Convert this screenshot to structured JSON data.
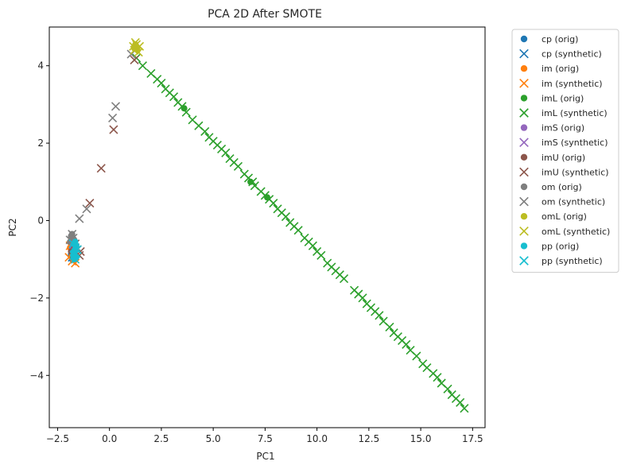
{
  "chart_data": {
    "type": "scatter",
    "title": "PCA 2D After SMOTE",
    "xlabel": "PC1",
    "ylabel": "PC2",
    "xlim": [
      -2.9,
      18.1
    ],
    "ylim": [
      -5.35,
      5.0
    ],
    "xticks": [
      -2.5,
      0.0,
      2.5,
      5.0,
      7.5,
      10.0,
      12.5,
      15.0,
      17.5
    ],
    "xtick_labels": [
      "−2.5",
      "0.0",
      "2.5",
      "5.0",
      "7.5",
      "10.0",
      "12.5",
      "15.0",
      "17.5"
    ],
    "yticks": [
      -4,
      -2,
      0,
      2,
      4
    ],
    "ytick_labels": [
      "−4",
      "−2",
      "0",
      "2",
      "4"
    ],
    "grid": false,
    "legend_position": "outside-top-right",
    "series": [
      {
        "name": "cp (orig)",
        "marker": "circle",
        "color": "#1f77b4",
        "x": [
          -1.8,
          -1.75,
          -1.7,
          -1.85,
          -1.78,
          -1.72,
          -1.8
        ],
        "y": [
          -0.7,
          -0.8,
          -0.65,
          -0.9,
          -0.55,
          -0.75,
          -1.0
        ]
      },
      {
        "name": "cp (synthetic)",
        "marker": "x",
        "color": "#1f77b4",
        "x": [
          -1.75,
          -1.7,
          -1.8,
          -1.65
        ],
        "y": [
          -0.6,
          -0.85,
          -0.95,
          -0.7
        ]
      },
      {
        "name": "im (orig)",
        "marker": "circle",
        "color": "#ff7f0e",
        "x": [
          -1.9,
          -1.8,
          -1.7,
          -1.85,
          -1.75
        ],
        "y": [
          -0.7,
          -0.9,
          -0.75,
          -0.55,
          -1.0
        ]
      },
      {
        "name": "im (synthetic)",
        "marker": "x",
        "color": "#ff7f0e",
        "x": [
          -1.95,
          -1.65,
          -1.8,
          -1.7,
          -1.9,
          -1.75
        ],
        "y": [
          -0.95,
          -1.1,
          -1.05,
          -0.85,
          -0.65,
          -0.8
        ]
      },
      {
        "name": "imL (orig)",
        "marker": "circle",
        "color": "#2ca02c",
        "x": [
          3.6,
          7.6,
          6.8
        ],
        "y": [
          2.9,
          0.6,
          1.0
        ]
      },
      {
        "name": "imL (synthetic)",
        "marker": "x",
        "color": "#2ca02c",
        "x": [
          1.3,
          1.6,
          2.0,
          2.3,
          2.5,
          2.7,
          2.9,
          3.1,
          3.3,
          3.5,
          3.7,
          4.0,
          4.3,
          4.6,
          4.8,
          5.0,
          5.2,
          5.4,
          5.6,
          5.8,
          6.0,
          6.2,
          6.5,
          6.7,
          6.9,
          7.0,
          7.3,
          7.5,
          7.7,
          7.9,
          8.1,
          8.3,
          8.5,
          8.7,
          8.9,
          9.1,
          9.4,
          9.6,
          9.8,
          10.0,
          10.2,
          10.5,
          10.7,
          10.9,
          11.1,
          11.3,
          11.8,
          12.0,
          12.2,
          12.4,
          12.6,
          12.8,
          13.0,
          13.2,
          13.5,
          13.7,
          13.9,
          14.1,
          14.3,
          14.5,
          14.8,
          15.1,
          15.3,
          15.6,
          15.8,
          16.0,
          16.3,
          16.5,
          16.7,
          16.9,
          17.1
        ],
        "y": [
          4.2,
          4.0,
          3.8,
          3.65,
          3.55,
          3.4,
          3.3,
          3.2,
          3.05,
          2.95,
          2.8,
          2.6,
          2.45,
          2.3,
          2.15,
          2.05,
          1.95,
          1.85,
          1.75,
          1.6,
          1.5,
          1.4,
          1.2,
          1.1,
          1.0,
          0.9,
          0.75,
          0.65,
          0.55,
          0.45,
          0.3,
          0.2,
          0.1,
          -0.05,
          -0.15,
          -0.25,
          -0.45,
          -0.55,
          -0.65,
          -0.8,
          -0.9,
          -1.1,
          -1.2,
          -1.3,
          -1.4,
          -1.5,
          -1.8,
          -1.9,
          -2.0,
          -2.15,
          -2.25,
          -2.35,
          -2.45,
          -2.6,
          -2.75,
          -2.9,
          -3.0,
          -3.1,
          -3.2,
          -3.35,
          -3.5,
          -3.7,
          -3.8,
          -3.95,
          -4.05,
          -4.2,
          -4.35,
          -4.5,
          -4.6,
          -4.7,
          -4.85
        ]
      },
      {
        "name": "imS (orig)",
        "marker": "circle",
        "color": "#9467bd",
        "x": [
          -1.8
        ],
        "y": [
          -0.7
        ]
      },
      {
        "name": "imS (synthetic)",
        "marker": "x",
        "color": "#9467bd",
        "x": [],
        "y": []
      },
      {
        "name": "imU (orig)",
        "marker": "circle",
        "color": "#8c564b",
        "x": [
          -1.85,
          -1.7,
          -1.75
        ],
        "y": [
          -0.8,
          -0.6,
          -0.95
        ]
      },
      {
        "name": "imU (synthetic)",
        "marker": "x",
        "color": "#8c564b",
        "x": [
          1.2,
          0.2,
          -0.4,
          -0.95,
          -1.55,
          -1.45,
          -1.65,
          -1.4
        ],
        "y": [
          4.15,
          2.35,
          1.35,
          0.45,
          -0.75,
          -0.9,
          -0.6,
          -0.8
        ]
      },
      {
        "name": "om (orig)",
        "marker": "circle",
        "color": "#7f7f7f",
        "x": [
          -1.85,
          -1.9,
          -1.8,
          -1.7
        ],
        "y": [
          -0.4,
          -0.55,
          -0.35,
          -0.5
        ]
      },
      {
        "name": "om (synthetic)",
        "marker": "x",
        "color": "#7f7f7f",
        "x": [
          1.05,
          0.3,
          0.15,
          -1.1,
          -1.45,
          -1.8,
          -1.9,
          -1.75
        ],
        "y": [
          4.3,
          2.95,
          2.65,
          0.3,
          0.05,
          -0.35,
          -0.5,
          -0.45
        ]
      },
      {
        "name": "omL (orig)",
        "marker": "circle",
        "color": "#bcbd22",
        "x": [
          1.2,
          1.3,
          1.35,
          1.25
        ],
        "y": [
          4.45,
          4.5,
          4.4,
          4.55
        ]
      },
      {
        "name": "omL (synthetic)",
        "marker": "x",
        "color": "#bcbd22",
        "x": [
          1.15,
          1.3,
          1.45,
          1.2,
          1.4,
          1.25
        ],
        "y": [
          4.5,
          4.55,
          4.5,
          4.4,
          4.35,
          4.6
        ]
      },
      {
        "name": "pp (orig)",
        "marker": "circle",
        "color": "#17becf",
        "x": [
          -1.7,
          -1.65,
          -1.75,
          -1.6,
          -1.7,
          -1.65,
          -1.72,
          -1.6
        ],
        "y": [
          -0.6,
          -0.75,
          -0.9,
          -0.65,
          -1.0,
          -0.55,
          -0.8,
          -0.95
        ]
      },
      {
        "name": "pp (synthetic)",
        "marker": "x",
        "color": "#17becf",
        "x": [
          -1.7,
          -1.6,
          -1.75,
          -1.65,
          -1.55,
          -1.72
        ],
        "y": [
          -0.7,
          -0.85,
          -0.6,
          -1.0,
          -0.75,
          -0.9
        ]
      }
    ]
  }
}
